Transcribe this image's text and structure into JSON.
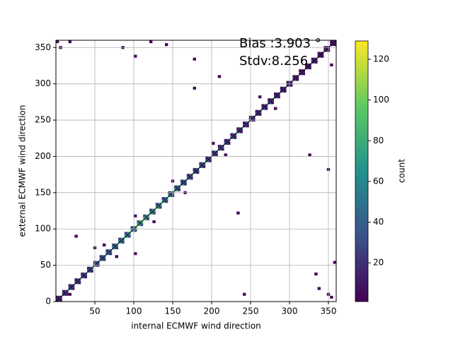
{
  "chart_data": {
    "type": "hist2d",
    "annotations": [
      "Bias :3.903 °",
      "Stdv:8.256"
    ],
    "x_label": "internal ECMWF wind direction",
    "y_label": "external ECMWF wind direction",
    "xlim": [
      0,
      360
    ],
    "ylim": [
      0,
      360
    ],
    "xticks": [
      50,
      100,
      150,
      200,
      250,
      300,
      350
    ],
    "yticks": [
      0,
      50,
      100,
      150,
      200,
      250,
      300,
      350
    ],
    "grid": true,
    "bin_size": 4,
    "colormap": "viridis",
    "colorbar": {
      "label": "count",
      "clim": [
        1,
        129
      ],
      "ticks": [
        20,
        40,
        60,
        80,
        100,
        120
      ]
    },
    "cells": [
      [
        0,
        0,
        18
      ],
      [
        4,
        4,
        22
      ],
      [
        8,
        8,
        25
      ],
      [
        12,
        12,
        28
      ],
      [
        16,
        16,
        30
      ],
      [
        20,
        20,
        32
      ],
      [
        24,
        24,
        30
      ],
      [
        28,
        28,
        34
      ],
      [
        32,
        32,
        36
      ],
      [
        36,
        36,
        38
      ],
      [
        40,
        40,
        40
      ],
      [
        44,
        44,
        42
      ],
      [
        48,
        48,
        45
      ],
      [
        52,
        52,
        44
      ],
      [
        56,
        56,
        48
      ],
      [
        60,
        60,
        50
      ],
      [
        64,
        64,
        52
      ],
      [
        68,
        68,
        55
      ],
      [
        72,
        72,
        58
      ],
      [
        76,
        76,
        60
      ],
      [
        80,
        80,
        62
      ],
      [
        84,
        84,
        65
      ],
      [
        88,
        88,
        70
      ],
      [
        92,
        92,
        72
      ],
      [
        96,
        96,
        75
      ],
      [
        100,
        100,
        80
      ],
      [
        104,
        104,
        85
      ],
      [
        108,
        108,
        88
      ],
      [
        112,
        112,
        90
      ],
      [
        116,
        116,
        85
      ],
      [
        120,
        120,
        80
      ],
      [
        124,
        124,
        78
      ],
      [
        128,
        128,
        75
      ],
      [
        132,
        132,
        72
      ],
      [
        136,
        136,
        70
      ],
      [
        140,
        140,
        68
      ],
      [
        144,
        144,
        65
      ],
      [
        148,
        148,
        62
      ],
      [
        152,
        152,
        60
      ],
      [
        156,
        156,
        58
      ],
      [
        160,
        160,
        55
      ],
      [
        164,
        164,
        52
      ],
      [
        168,
        168,
        50
      ],
      [
        172,
        172,
        48
      ],
      [
        176,
        176,
        46
      ],
      [
        180,
        180,
        45
      ],
      [
        184,
        184,
        44
      ],
      [
        188,
        188,
        42
      ],
      [
        192,
        192,
        40
      ],
      [
        196,
        196,
        40
      ],
      [
        200,
        200,
        38
      ],
      [
        204,
        204,
        38
      ],
      [
        208,
        208,
        36
      ],
      [
        212,
        212,
        36
      ],
      [
        216,
        216,
        35
      ],
      [
        220,
        220,
        34
      ],
      [
        224,
        224,
        34
      ],
      [
        228,
        228,
        33
      ],
      [
        232,
        232,
        32
      ],
      [
        236,
        236,
        32
      ],
      [
        240,
        240,
        30
      ],
      [
        244,
        244,
        30
      ],
      [
        248,
        248,
        29
      ],
      [
        252,
        252,
        28
      ],
      [
        256,
        256,
        28
      ],
      [
        260,
        260,
        27
      ],
      [
        264,
        264,
        26
      ],
      [
        268,
        268,
        25
      ],
      [
        272,
        272,
        25
      ],
      [
        276,
        276,
        24
      ],
      [
        280,
        280,
        24
      ],
      [
        284,
        284,
        23
      ],
      [
        288,
        288,
        22
      ],
      [
        292,
        292,
        22
      ],
      [
        296,
        296,
        21
      ],
      [
        300,
        300,
        20
      ],
      [
        304,
        304,
        20
      ],
      [
        308,
        308,
        19
      ],
      [
        312,
        312,
        18
      ],
      [
        316,
        316,
        18
      ],
      [
        320,
        320,
        17
      ],
      [
        324,
        324,
        16
      ],
      [
        328,
        328,
        16
      ],
      [
        332,
        332,
        15
      ],
      [
        336,
        336,
        15
      ],
      [
        340,
        340,
        14
      ],
      [
        344,
        344,
        14
      ],
      [
        348,
        348,
        13
      ],
      [
        352,
        352,
        12
      ],
      [
        356,
        356,
        12
      ],
      [
        0,
        4,
        8
      ],
      [
        8,
        12,
        10
      ],
      [
        16,
        20,
        12
      ],
      [
        24,
        28,
        9
      ],
      [
        32,
        36,
        14
      ],
      [
        40,
        44,
        15
      ],
      [
        48,
        52,
        18
      ],
      [
        56,
        60,
        20
      ],
      [
        64,
        68,
        22
      ],
      [
        72,
        76,
        25
      ],
      [
        80,
        84,
        28
      ],
      [
        88,
        92,
        30
      ],
      [
        96,
        100,
        32
      ],
      [
        104,
        108,
        35
      ],
      [
        112,
        116,
        30
      ],
      [
        120,
        124,
        28
      ],
      [
        128,
        132,
        26
      ],
      [
        136,
        140,
        24
      ],
      [
        144,
        148,
        22
      ],
      [
        152,
        156,
        20
      ],
      [
        160,
        164,
        18
      ],
      [
        168,
        172,
        16
      ],
      [
        176,
        180,
        15
      ],
      [
        184,
        188,
        14
      ],
      [
        192,
        196,
        13
      ],
      [
        200,
        204,
        12
      ],
      [
        208,
        212,
        12
      ],
      [
        216,
        220,
        11
      ],
      [
        224,
        228,
        10
      ],
      [
        232,
        236,
        10
      ],
      [
        240,
        244,
        9
      ],
      [
        248,
        252,
        9
      ],
      [
        256,
        260,
        8
      ],
      [
        264,
        268,
        8
      ],
      [
        272,
        276,
        7
      ],
      [
        280,
        284,
        7
      ],
      [
        288,
        292,
        6
      ],
      [
        296,
        300,
        6
      ],
      [
        304,
        308,
        6
      ],
      [
        312,
        316,
        5
      ],
      [
        320,
        324,
        5
      ],
      [
        328,
        332,
        5
      ],
      [
        336,
        340,
        4
      ],
      [
        344,
        348,
        4
      ],
      [
        352,
        356,
        4
      ],
      [
        4,
        0,
        7
      ],
      [
        12,
        8,
        9
      ],
      [
        20,
        16,
        11
      ],
      [
        28,
        24,
        8
      ],
      [
        36,
        32,
        13
      ],
      [
        44,
        40,
        14
      ],
      [
        52,
        48,
        17
      ],
      [
        60,
        56,
        19
      ],
      [
        68,
        64,
        21
      ],
      [
        76,
        72,
        24
      ],
      [
        84,
        80,
        27
      ],
      [
        92,
        88,
        29
      ],
      [
        100,
        96,
        31
      ],
      [
        108,
        104,
        33
      ],
      [
        116,
        112,
        29
      ],
      [
        124,
        120,
        27
      ],
      [
        132,
        128,
        25
      ],
      [
        140,
        136,
        23
      ],
      [
        148,
        144,
        21
      ],
      [
        156,
        152,
        19
      ],
      [
        164,
        160,
        17
      ],
      [
        172,
        168,
        15
      ],
      [
        180,
        176,
        14
      ],
      [
        188,
        184,
        13
      ],
      [
        196,
        192,
        12
      ],
      [
        204,
        200,
        11
      ],
      [
        212,
        208,
        11
      ],
      [
        220,
        216,
        10
      ],
      [
        228,
        224,
        9
      ],
      [
        236,
        232,
        9
      ],
      [
        244,
        240,
        8
      ],
      [
        252,
        248,
        8
      ],
      [
        260,
        256,
        7
      ],
      [
        268,
        264,
        7
      ],
      [
        276,
        272,
        6
      ],
      [
        284,
        280,
        6
      ],
      [
        292,
        288,
        5
      ],
      [
        300,
        296,
        5
      ],
      [
        308,
        304,
        5
      ],
      [
        316,
        312,
        4
      ],
      [
        324,
        320,
        4
      ],
      [
        332,
        328,
        4
      ],
      [
        340,
        336,
        3
      ],
      [
        348,
        344,
        3
      ],
      [
        356,
        352,
        3
      ],
      [
        100,
        116,
        5
      ],
      [
        124,
        108,
        4
      ],
      [
        200,
        216,
        4
      ],
      [
        216,
        200,
        3
      ],
      [
        260,
        280,
        3
      ],
      [
        280,
        264,
        3
      ],
      [
        60,
        76,
        3
      ],
      [
        76,
        60,
        3
      ],
      [
        148,
        164,
        3
      ],
      [
        164,
        148,
        3
      ],
      [
        84,
        348,
        2
      ],
      [
        100,
        336,
        2
      ],
      [
        140,
        352,
        2
      ],
      [
        176,
        332,
        2
      ],
      [
        176,
        292,
        2
      ],
      [
        208,
        308,
        2
      ],
      [
        352,
        324,
        2
      ],
      [
        348,
        180,
        3
      ],
      [
        324,
        200,
        2
      ],
      [
        232,
        120,
        2
      ],
      [
        332,
        36,
        2
      ],
      [
        356,
        52,
        2
      ],
      [
        336,
        16,
        2
      ],
      [
        348,
        8,
        3
      ],
      [
        4,
        348,
        4
      ],
      [
        0,
        356,
        6
      ],
      [
        16,
        356,
        3
      ],
      [
        120,
        356,
        2
      ],
      [
        352,
        4,
        5
      ],
      [
        24,
        88,
        2
      ],
      [
        48,
        72,
        2
      ],
      [
        100,
        64,
        2
      ],
      [
        240,
        8,
        2
      ],
      [
        16,
        8,
        3
      ]
    ]
  }
}
